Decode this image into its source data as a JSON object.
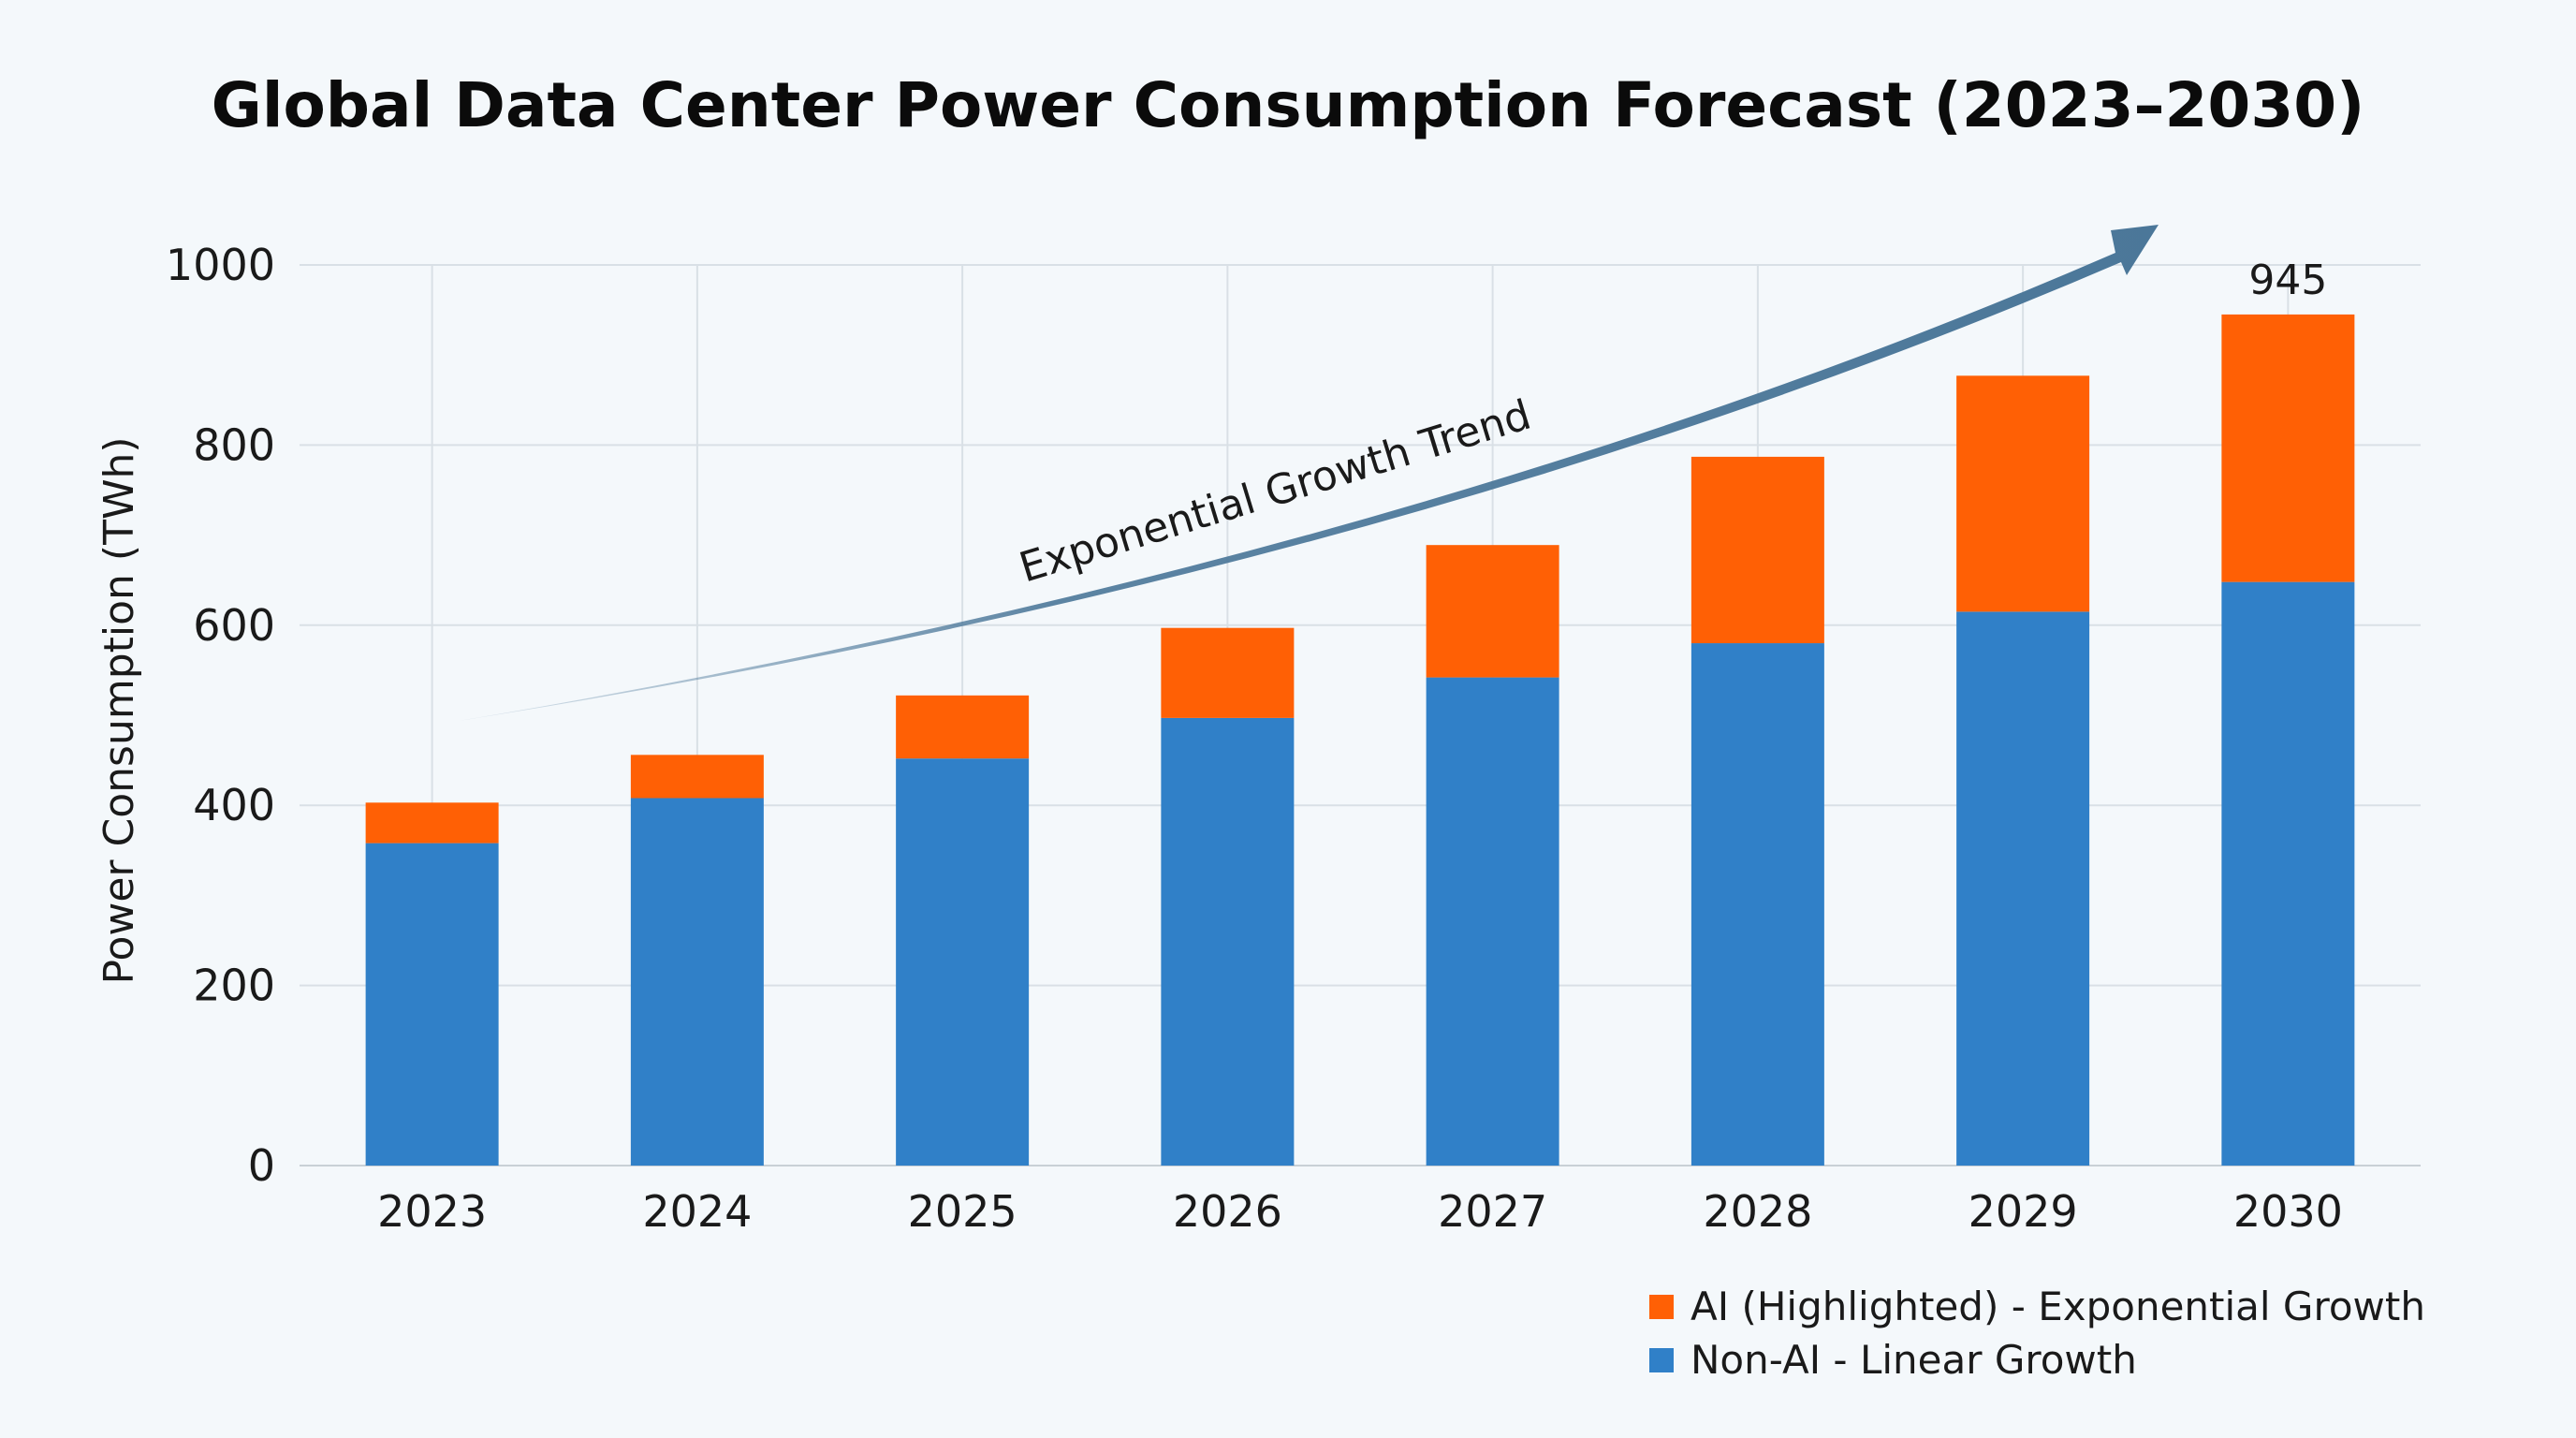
{
  "colors": {
    "ai": "#ff6005",
    "non_ai": "#3080c8",
    "trend_arrow": "#4b7799",
    "background": "#f4f8fb"
  },
  "chart_data": {
    "type": "bar",
    "stacked": true,
    "title": "Global Data Center Power Consumption Forecast (2023–2030)",
    "xlabel": "",
    "ylabel": "Power Consumption (TWh)",
    "ylim": [
      0,
      1000
    ],
    "yticks": [
      "0",
      "200",
      "400",
      "600",
      "800",
      "1000"
    ],
    "grid": true,
    "legend_position": "bottom-right",
    "categories": [
      "2023",
      "2024",
      "2025",
      "2026",
      "2027",
      "2028",
      "2029",
      "2030"
    ],
    "series": [
      {
        "name": "Non-AI - Linear Growth",
        "color_key": "non_ai",
        "values": [
          358,
          408,
          452,
          497,
          542,
          580,
          615,
          648
        ]
      },
      {
        "name": "AI (Highlighted) - Exponential Growth",
        "color_key": "ai",
        "values": [
          45,
          48,
          70,
          100,
          147,
          207,
          262,
          297
        ]
      }
    ],
    "data_labels": [
      {
        "category": "2030",
        "text": "945"
      }
    ],
    "annotations": [
      {
        "type": "arrow",
        "text": "Exponential Growth Trend"
      }
    ]
  }
}
